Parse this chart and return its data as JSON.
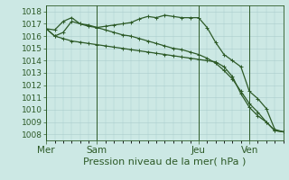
{
  "title": "Pression niveau de la mer( hPa )",
  "bg_color": "#cce8e4",
  "grid_color": "#aacccc",
  "line_color": "#2d5a27",
  "ylim": [
    1007.5,
    1018.5
  ],
  "yticks": [
    1008,
    1009,
    1010,
    1011,
    1012,
    1013,
    1014,
    1015,
    1016,
    1017,
    1018
  ],
  "day_labels": [
    "Mer",
    "Sam",
    "Jeu",
    "Ven"
  ],
  "day_positions": [
    0,
    6,
    18,
    24
  ],
  "series1_x": [
    0,
    1,
    2,
    3,
    4,
    5,
    6,
    7,
    8,
    9,
    10,
    11,
    12,
    13,
    14,
    15,
    16,
    17,
    18,
    19,
    20,
    21,
    22,
    23,
    24,
    25,
    26,
    27,
    28
  ],
  "series2_x": [
    0,
    1,
    2,
    3,
    4,
    5,
    6,
    7,
    8,
    9,
    10,
    11,
    12,
    13,
    14,
    15,
    16,
    17,
    18,
    19,
    20,
    21,
    22,
    23,
    24,
    25,
    26,
    27,
    28
  ],
  "series3_x": [
    0,
    1,
    2,
    3,
    4,
    5,
    6,
    7,
    8,
    9,
    10,
    11,
    12,
    13,
    14,
    15,
    16,
    17,
    18,
    19,
    20,
    21,
    22,
    23,
    24,
    25,
    26,
    27,
    28
  ],
  "series1": [
    1016.6,
    1016.0,
    1016.3,
    1017.2,
    1017.0,
    1016.9,
    1016.7,
    1016.5,
    1016.3,
    1016.1,
    1016.0,
    1015.8,
    1015.6,
    1015.4,
    1015.2,
    1015.0,
    1014.9,
    1014.7,
    1014.5,
    1014.2,
    1013.8,
    1013.2,
    1012.5,
    1011.5,
    1010.5,
    1009.8,
    1009.0,
    1008.3,
    1008.2
  ],
  "series2": [
    1016.6,
    1016.5,
    1017.2,
    1017.5,
    1017.0,
    1016.8,
    1016.7,
    1016.8,
    1016.9,
    1017.0,
    1017.1,
    1017.4,
    1017.6,
    1017.5,
    1017.7,
    1017.6,
    1017.5,
    1017.5,
    1017.5,
    1016.7,
    1015.5,
    1014.5,
    1014.0,
    1013.5,
    1011.5,
    1010.9,
    1010.1,
    1008.4,
    1008.2
  ],
  "series3": [
    1016.6,
    1016.0,
    1015.8,
    1015.6,
    1015.5,
    1015.4,
    1015.3,
    1015.2,
    1015.1,
    1015.0,
    1014.9,
    1014.8,
    1014.7,
    1014.6,
    1014.5,
    1014.4,
    1014.3,
    1014.2,
    1014.1,
    1014.0,
    1013.9,
    1013.5,
    1012.7,
    1011.3,
    1010.2,
    1009.5,
    1009.0,
    1008.3,
    1008.2
  ],
  "num_points": 29,
  "xlabel_fontsize": 8,
  "ytick_fontsize": 6.5,
  "xtick_fontsize": 7.5,
  "marker_size": 3,
  "line_width": 0.9
}
